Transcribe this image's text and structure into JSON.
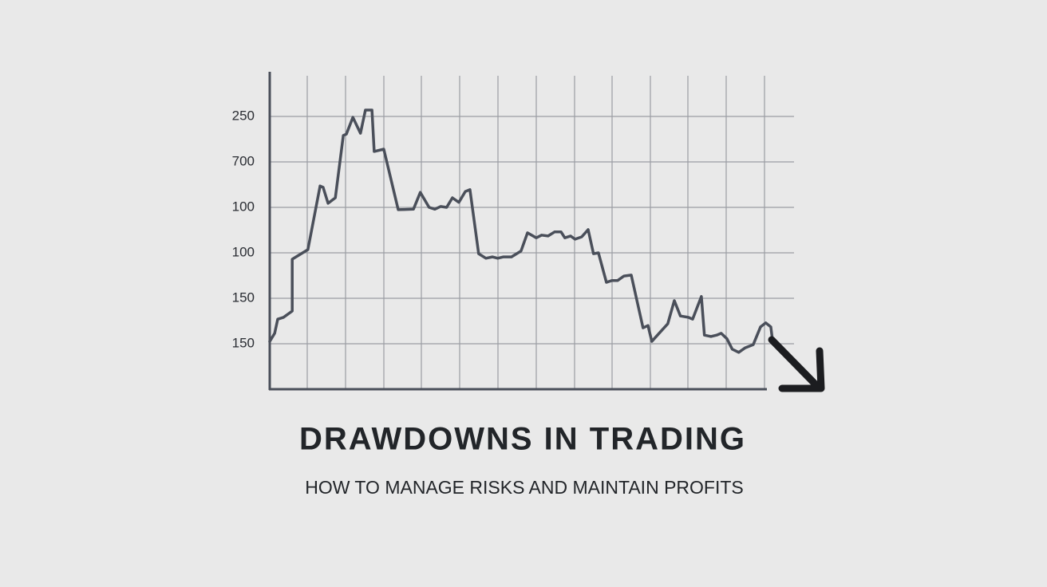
{
  "chart_data": {
    "type": "line",
    "title": "DRAWDOWNS IN TRADING",
    "subtitle": "HOW TO MANAGE RISKS AND MAINTAIN PROFITS",
    "xlim": [
      0,
      13.75
    ],
    "ylim": [
      0,
      7
    ],
    "yticks": [
      {
        "value": 6,
        "label": "250"
      },
      {
        "value": 5,
        "label": "700"
      },
      {
        "value": 4,
        "label": "100"
      },
      {
        "value": 3,
        "label": "100"
      },
      {
        "value": 2,
        "label": "150"
      },
      {
        "value": 1,
        "label": "150"
      }
    ],
    "grid": true,
    "series": [
      {
        "color": "#4a4f5a",
        "x": [
          0,
          0.13,
          0.21,
          0.36,
          0.59,
          0.59,
          1.0,
          1.32,
          1.4,
          1.53,
          1.72,
          1.93,
          2.01,
          2.18,
          2.38,
          2.51,
          2.68,
          2.74,
          2.99,
          3.37,
          3.77,
          3.95,
          4.18,
          4.33,
          4.48,
          4.64,
          4.79,
          4.96,
          5.13,
          5.25,
          5.48,
          5.67,
          5.84,
          5.98,
          6.13,
          6.34,
          6.59,
          6.76,
          6.99,
          7.13,
          7.3,
          7.47,
          7.64,
          7.74,
          7.89,
          8.01,
          8.18,
          8.35,
          8.49,
          8.62,
          8.83,
          8.97,
          9.12,
          9.29,
          9.48,
          9.79,
          9.92,
          10.02,
          10.21,
          10.44,
          10.61,
          10.77,
          10.98,
          11.09,
          11.32,
          11.4,
          11.57,
          11.72,
          11.84,
          11.99,
          12.13,
          12.3,
          12.47,
          12.68,
          12.87,
          13.01,
          13.14,
          13.18
        ],
        "values": [
          1.05,
          1.23,
          1.54,
          1.58,
          1.72,
          2.86,
          3.07,
          4.47,
          4.44,
          4.09,
          4.21,
          5.58,
          5.61,
          5.98,
          5.63,
          6.14,
          6.14,
          5.23,
          5.28,
          3.95,
          3.96,
          4.33,
          4.0,
          3.96,
          4.02,
          4.0,
          4.21,
          4.11,
          4.35,
          4.39,
          2.98,
          2.88,
          2.91,
          2.88,
          2.91,
          2.91,
          3.04,
          3.44,
          3.33,
          3.39,
          3.37,
          3.46,
          3.46,
          3.33,
          3.37,
          3.3,
          3.35,
          3.51,
          2.98,
          3.0,
          2.35,
          2.39,
          2.39,
          2.49,
          2.51,
          1.35,
          1.4,
          1.05,
          1.23,
          1.44,
          1.95,
          1.61,
          1.58,
          1.54,
          2.04,
          1.19,
          1.16,
          1.19,
          1.23,
          1.11,
          0.88,
          0.81,
          0.91,
          0.98,
          1.37,
          1.46,
          1.37,
          1.11
        ]
      }
    ]
  }
}
